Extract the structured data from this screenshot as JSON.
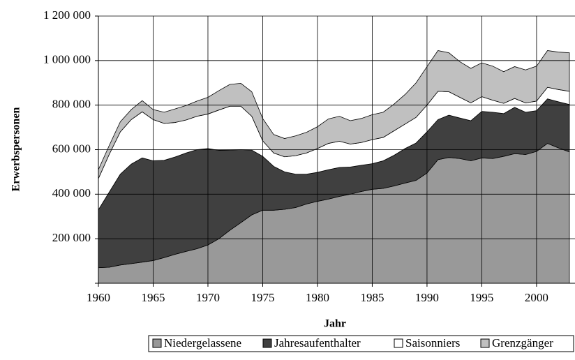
{
  "chart_data": {
    "type": "stacked_area",
    "x_label": "Jahr",
    "y_label": "Erwerbspersonen",
    "x": [
      1960,
      1961,
      1962,
      1963,
      1964,
      1965,
      1966,
      1967,
      1968,
      1969,
      1970,
      1971,
      1972,
      1973,
      1974,
      1975,
      1976,
      1977,
      1978,
      1979,
      1980,
      1981,
      1982,
      1983,
      1984,
      1985,
      1986,
      1987,
      1988,
      1989,
      1990,
      1991,
      1992,
      1993,
      1994,
      1995,
      1996,
      1997,
      1998,
      1999,
      2000,
      2001,
      2002,
      2003
    ],
    "series": [
      {
        "name": "Niedergelassene",
        "color": "#999999",
        "values": [
          70000,
          72000,
          82000,
          88000,
          95000,
          102000,
          115000,
          130000,
          143000,
          155000,
          172000,
          200000,
          238000,
          272000,
          307000,
          328000,
          328000,
          332000,
          340000,
          356000,
          368000,
          378000,
          390000,
          400000,
          412000,
          422000,
          426000,
          437000,
          450000,
          462000,
          495000,
          555000,
          565000,
          560000,
          550000,
          563000,
          560000,
          570000,
          582000,
          578000,
          592000,
          628000,
          608000,
          590000
        ]
      },
      {
        "name": "Jahresaufenthalter",
        "color": "#404040",
        "values": [
          260000,
          338000,
          408000,
          447000,
          468000,
          448000,
          437000,
          437000,
          442000,
          445000,
          433000,
          397000,
          360000,
          328000,
          291000,
          242000,
          197000,
          168000,
          150000,
          134000,
          130000,
          132000,
          130000,
          122000,
          118000,
          115000,
          124000,
          138000,
          155000,
          168000,
          185000,
          180000,
          190000,
          182000,
          180000,
          209000,
          208000,
          192000,
          208000,
          190000,
          183000,
          200000,
          207000,
          213000
        ]
      },
      {
        "name": "Saisonniers",
        "color": "#ffffff",
        "values": [
          140000,
          170000,
          190000,
          200000,
          207000,
          185000,
          166000,
          155000,
          148000,
          150000,
          155000,
          181000,
          197000,
          195000,
          152000,
          70000,
          60000,
          68000,
          83000,
          95000,
          107000,
          118000,
          118000,
          103000,
          102000,
          108000,
          105000,
          110000,
          110000,
          115000,
          120000,
          127000,
          105000,
          93000,
          80000,
          66000,
          54000,
          46000,
          40000,
          42000,
          43000,
          52000,
          55000,
          59000
        ]
      },
      {
        "name": "Grenzgänger",
        "color": "#c0c0c0",
        "values": [
          40000,
          40000,
          45000,
          45000,
          50000,
          45000,
          50000,
          61000,
          65000,
          68000,
          75000,
          87000,
          98000,
          103000,
          110000,
          100000,
          83000,
          82000,
          89000,
          93000,
          98000,
          110000,
          112000,
          105000,
          108000,
          112000,
          113000,
          120000,
          133000,
          155000,
          173000,
          183000,
          175000,
          160000,
          155000,
          152000,
          153000,
          142000,
          143000,
          148000,
          157000,
          165000,
          168000,
          173000
        ]
      }
    ],
    "xlim": [
      1960,
      2003
    ],
    "xticks": [
      1960,
      1965,
      1970,
      1975,
      1980,
      1985,
      1990,
      1995,
      2000
    ],
    "ylim": [
      0,
      1200000
    ],
    "yticks": [
      {
        "value": 0,
        "label": ""
      },
      {
        "value": 200000,
        "label": "200 000"
      },
      {
        "value": 400000,
        "label": "400 000"
      },
      {
        "value": 600000,
        "label": "600 000"
      },
      {
        "value": 800000,
        "label": "800 000"
      },
      {
        "value": 1000000,
        "label": "1 000 000"
      },
      {
        "value": 1200000,
        "label": "1 200 000"
      }
    ],
    "grid": true,
    "legend": "bottom"
  }
}
